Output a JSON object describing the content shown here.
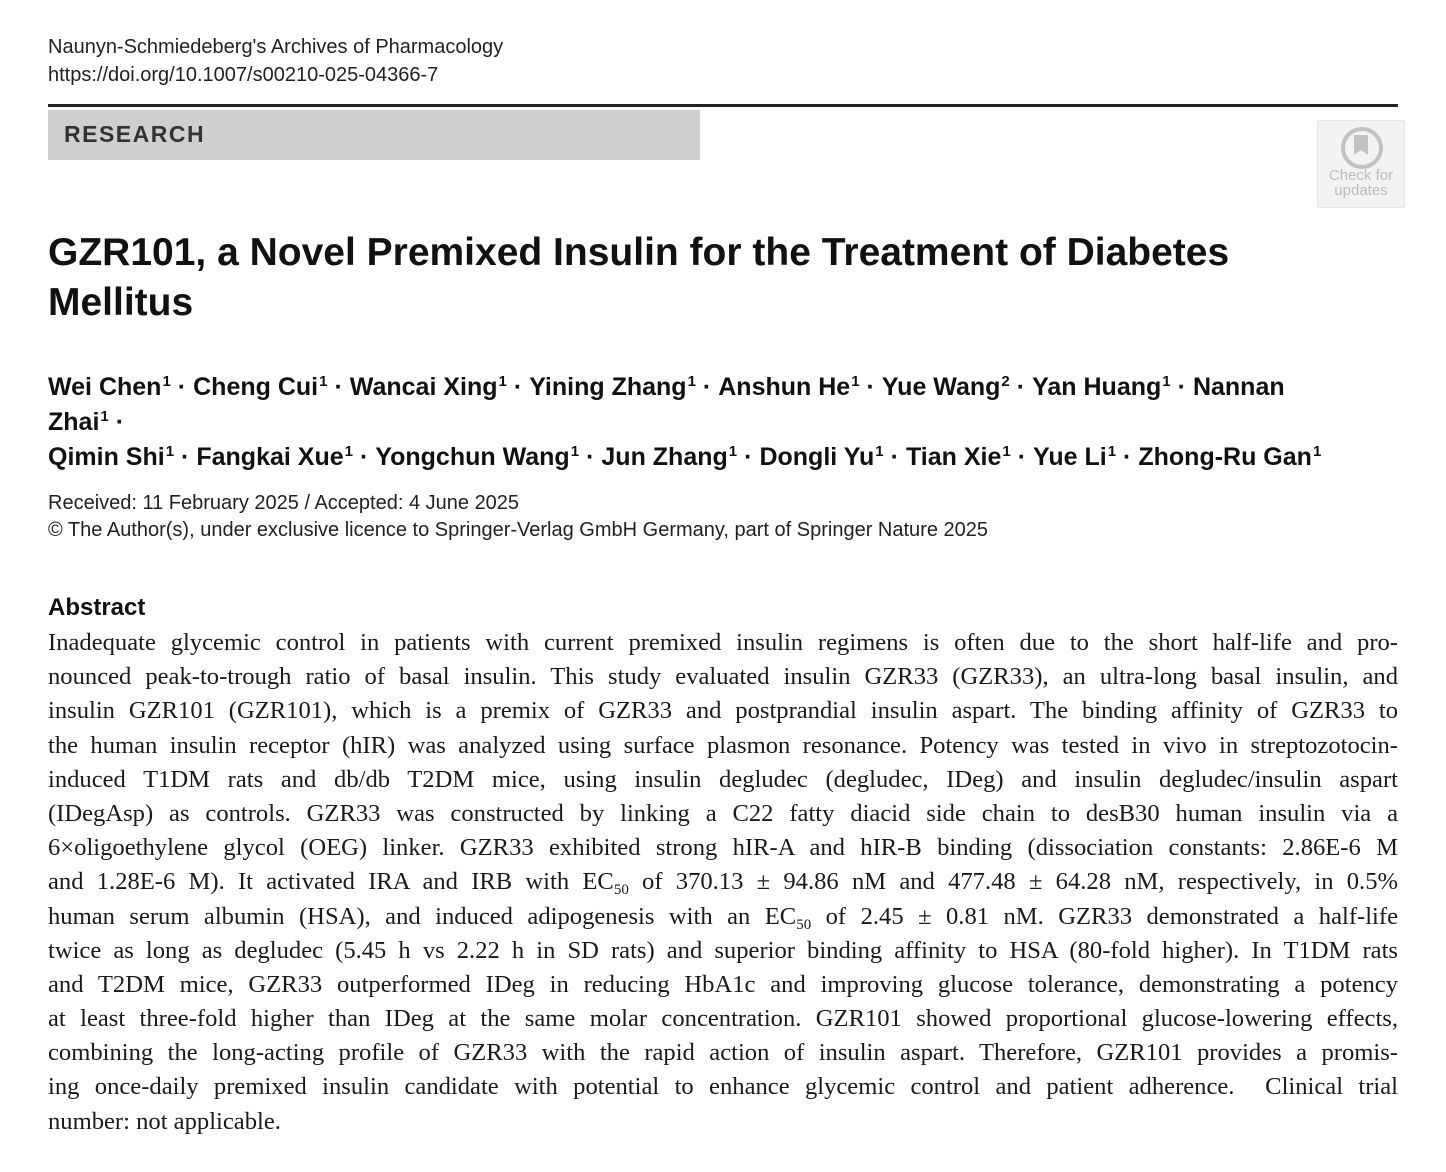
{
  "journal": {
    "name": "Naunyn-Schmiedeberg's Archives of Pharmacology",
    "doi": "https://doi.org/10.1007/s00210-025-04366-7"
  },
  "section_label": "RESEARCH",
  "badge": {
    "line1": "Check for",
    "line2": "updates"
  },
  "title": "GZR101, a Novel Premixed Insulin for the Treatment of Diabetes Mellitus",
  "separator": "·",
  "authors": [
    {
      "name": "Wei Chen",
      "aff": "1"
    },
    {
      "name": "Cheng Cui",
      "aff": "1"
    },
    {
      "name": "Wancai Xing",
      "aff": "1"
    },
    {
      "name": "Yining Zhang",
      "aff": "1"
    },
    {
      "name": "Anshun He",
      "aff": "1"
    },
    {
      "name": "Yue Wang",
      "aff": "2"
    },
    {
      "name": "Yan Huang",
      "aff": "1"
    },
    {
      "name": "Nannan Zhai",
      "aff": "1"
    },
    {
      "name": "Qimin Shi",
      "aff": "1"
    },
    {
      "name": "Fangkai Xue",
      "aff": "1"
    },
    {
      "name": "Yongchun Wang",
      "aff": "1"
    },
    {
      "name": "Jun Zhang",
      "aff": "1"
    },
    {
      "name": "Dongli Yu",
      "aff": "1"
    },
    {
      "name": "Tian Xie",
      "aff": "1"
    },
    {
      "name": "Yue Li",
      "aff": "1"
    },
    {
      "name": "Zhong-Ru Gan",
      "aff": "1"
    }
  ],
  "dates": "Received: 11 February 2025 / Accepted: 4 June 2025",
  "copyright": "© The Author(s), under exclusive licence to Springer-Verlag GmbH Germany, part of Springer Nature 2025",
  "abstract": {
    "heading": "Abstract",
    "lines": [
      [
        {
          "t": "Inadequate glycemic control in patients with current premixed insulin regimens is often due to the short half-life and pro-"
        }
      ],
      [
        {
          "t": "nounced peak-to-trough ratio of basal insulin. This study evaluated insulin GZR33 (GZR33), an ultra-long basal insulin, and"
        }
      ],
      [
        {
          "t": "insulin GZR101 (GZR101), which is a premix of GZR33 and postprandial insulin aspart. The binding affinity of GZR33 to"
        }
      ],
      [
        {
          "t": "the human insulin receptor (hIR) was analyzed using surface plasmon resonance. Potency was tested in vivo in streptozotocin-"
        }
      ],
      [
        {
          "t": "induced T1DM rats and db/db T2DM mice, using insulin degludec (degludec, IDeg) and insulin degludec/insulin aspart"
        }
      ],
      [
        {
          "t": "(IDegAsp) as controls. GZR33 was constructed by linking a C22 fatty diacid side chain to desB30 human insulin via a"
        }
      ],
      [
        {
          "t": "6×oligoethylene glycol (OEG) linker. GZR33 exhibited strong hIR-A and hIR-B binding (dissociation constants: 2.86E-6 M"
        }
      ],
      [
        {
          "t": "and 1.28E-6 M). It activated IRA and IRB with EC"
        },
        {
          "sub": "50"
        },
        {
          "t": " of 370.13 ± 94.86 nM and 477.48 ± 64.28 nM, respectively, in 0.5%"
        }
      ],
      [
        {
          "t": "human serum albumin (HSA), and induced adipogenesis with an EC"
        },
        {
          "sub": "50"
        },
        {
          "t": " of 2.45 ± 0.81 nM. GZR33 demonstrated a half-life"
        }
      ],
      [
        {
          "t": "twice as long as degludec (5.45 h vs 2.22 h in SD rats) and superior binding affinity to HSA (80-fold higher). In T1DM rats"
        }
      ],
      [
        {
          "t": "and T2DM mice, GZR33 outperformed IDeg in reducing HbA1c and improving glucose tolerance, demonstrating a potency"
        }
      ],
      [
        {
          "t": "at least three-fold higher than IDeg at the same molar concentration. GZR101 showed proportional glucose-lowering effects,"
        }
      ],
      [
        {
          "t": "combining the long-acting profile of GZR33 with the rapid action of insulin aspart. Therefore, GZR101 provides a promis-"
        }
      ],
      [
        {
          "t": "ing once-daily premixed insulin candidate with potential to enhance glycemic control and patient adherence.  Clinical trial"
        }
      ],
      [
        {
          "t": "number: not applicable."
        }
      ]
    ]
  }
}
